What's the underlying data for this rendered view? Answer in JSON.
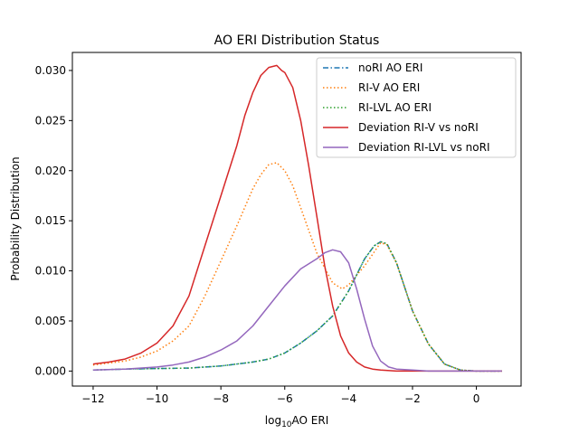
{
  "chart_data": {
    "type": "line",
    "title": "AO ERI Distribution Status",
    "xlabel": {
      "prefix": "log",
      "subscript": "10",
      "suffix": "AO ERI"
    },
    "ylabel": "Probability Distribution",
    "xlim": [
      -12.65,
      1.4
    ],
    "ylim": [
      -0.0015,
      0.0318
    ],
    "xticks": [
      -12,
      -10,
      -8,
      -6,
      -4,
      -2,
      0
    ],
    "xtick_labels": [
      "−12",
      "−10",
      "−8",
      "−6",
      "−4",
      "−2",
      "0"
    ],
    "yticks": [
      0,
      0.005,
      0.01,
      0.015,
      0.02,
      0.025,
      0.03
    ],
    "ytick_labels": [
      "0.000",
      "0.005",
      "0.010",
      "0.015",
      "0.020",
      "0.025",
      "0.030"
    ],
    "grid": false,
    "legend_position": "top-right",
    "series": [
      {
        "name": "noRI AO ERI",
        "color": "#1f77b4",
        "dash": "dashdot",
        "x": [
          -12,
          -11,
          -10,
          -9,
          -8.5,
          -8,
          -7.5,
          -7,
          -6.5,
          -6,
          -5.5,
          -5,
          -4.5,
          -4,
          -3.5,
          -3.2,
          -3,
          -2.8,
          -2.5,
          -2,
          -1.5,
          -1,
          -0.5,
          0,
          0.8
        ],
        "y": [
          0.0001,
          0.0002,
          0.00025,
          0.0003,
          0.0004,
          0.0005,
          0.0007,
          0.0009,
          0.0012,
          0.0018,
          0.0028,
          0.004,
          0.0055,
          0.008,
          0.0112,
          0.0125,
          0.0129,
          0.0127,
          0.0108,
          0.006,
          0.0027,
          0.0007,
          0.0001,
          0.0,
          0.0
        ]
      },
      {
        "name": "RI-V AO ERI",
        "color": "#ff7f0e",
        "dash": "dotted",
        "x": [
          -12,
          -11.5,
          -11,
          -10.5,
          -10,
          -9.5,
          -9,
          -8.5,
          -8,
          -7.5,
          -7,
          -6.75,
          -6.5,
          -6.25,
          -6,
          -5.75,
          -5.5,
          -5,
          -4.5,
          -4.2,
          -4,
          -3.5,
          -3,
          -2.8,
          -2.5,
          -2,
          -1.5,
          -1,
          -0.5,
          0,
          0.8
        ],
        "y": [
          0.0006,
          0.0008,
          0.001,
          0.0014,
          0.002,
          0.003,
          0.0045,
          0.0075,
          0.011,
          0.0145,
          0.0182,
          0.0196,
          0.0206,
          0.0208,
          0.02,
          0.0185,
          0.0163,
          0.0118,
          0.0088,
          0.0082,
          0.0086,
          0.0105,
          0.0128,
          0.0126,
          0.0108,
          0.006,
          0.0027,
          0.0007,
          0.0001,
          0.0,
          0.0
        ]
      },
      {
        "name": "RI-LVL AO ERI",
        "color": "#2ca02c",
        "dash": "dotted",
        "x": [
          -12,
          -11,
          -10,
          -9,
          -8.5,
          -8,
          -7.5,
          -7,
          -6.5,
          -6,
          -5.5,
          -5,
          -4.5,
          -4,
          -3.5,
          -3.2,
          -3,
          -2.8,
          -2.5,
          -2,
          -1.5,
          -1,
          -0.5,
          0,
          0.8
        ],
        "y": [
          0.0001,
          0.0002,
          0.00025,
          0.0003,
          0.0004,
          0.0005,
          0.0007,
          0.0009,
          0.0012,
          0.0018,
          0.0028,
          0.004,
          0.0055,
          0.008,
          0.0112,
          0.0125,
          0.0129,
          0.0127,
          0.0108,
          0.006,
          0.0027,
          0.0007,
          0.0001,
          0.0,
          0.0
        ]
      },
      {
        "name": "Deviation RI-V vs noRI",
        "color": "#d62728",
        "dash": "solid",
        "x": [
          -12,
          -11.5,
          -11,
          -10.5,
          -10,
          -9.5,
          -9,
          -8.5,
          -8,
          -7.5,
          -7.25,
          -7,
          -6.75,
          -6.5,
          -6.25,
          -6.1,
          -6,
          -5.75,
          -5.5,
          -5.25,
          -5,
          -4.75,
          -4.5,
          -4.25,
          -4,
          -3.75,
          -3.5,
          -3.25,
          -3,
          -2.5,
          -2,
          -1,
          0,
          0.8
        ],
        "y": [
          0.0007,
          0.0009,
          0.0012,
          0.0018,
          0.0028,
          0.0045,
          0.0075,
          0.0125,
          0.0175,
          0.0225,
          0.0255,
          0.0278,
          0.0295,
          0.0303,
          0.0305,
          0.03,
          0.0298,
          0.0283,
          0.025,
          0.0205,
          0.0155,
          0.0105,
          0.0065,
          0.0035,
          0.0018,
          0.0009,
          0.0004,
          0.0002,
          0.0001,
          0.0,
          0.0,
          0.0,
          0.0,
          0.0
        ]
      },
      {
        "name": "Deviation RI-LVL vs noRI",
        "color": "#9467bd",
        "dash": "solid",
        "x": [
          -12,
          -11,
          -10,
          -9.5,
          -9,
          -8.5,
          -8,
          -7.5,
          -7,
          -6.5,
          -6,
          -5.5,
          -5,
          -4.75,
          -4.5,
          -4.25,
          -4,
          -3.75,
          -3.5,
          -3.25,
          -3,
          -2.75,
          -2.5,
          -2,
          -1.5,
          -1,
          0,
          0.8
        ],
        "y": [
          0.0001,
          0.0002,
          0.0004,
          0.0006,
          0.0009,
          0.0014,
          0.0021,
          0.003,
          0.0045,
          0.0065,
          0.0085,
          0.0102,
          0.0112,
          0.0118,
          0.0121,
          0.0119,
          0.0108,
          0.0082,
          0.0052,
          0.0025,
          0.001,
          0.0004,
          0.0002,
          0.0001,
          0.0,
          0.0,
          0.0,
          0.0
        ]
      }
    ]
  }
}
